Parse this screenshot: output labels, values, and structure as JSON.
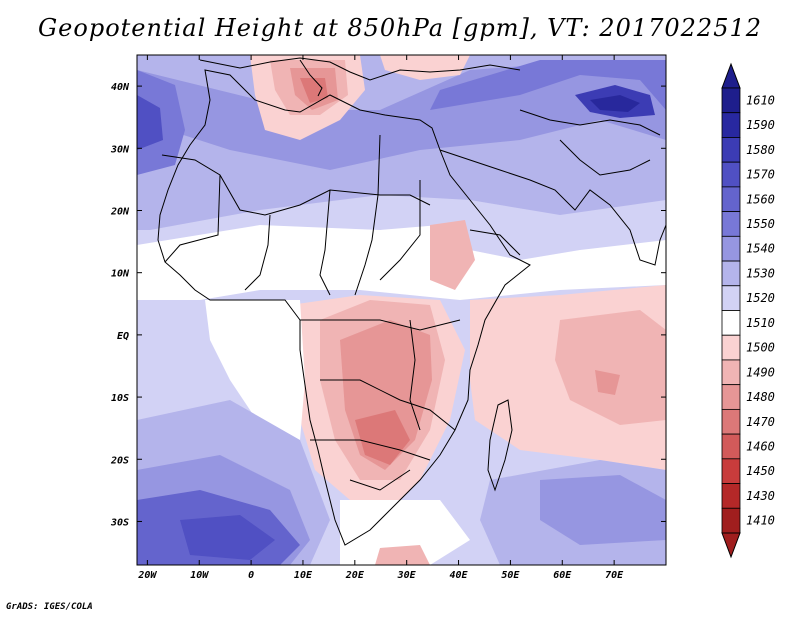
{
  "title": "Geopotential Height at 850hPa [gpm], VT: 2017022512",
  "credit": "GrADS: IGES/COLA",
  "axes": {
    "lon_labels": [
      "20W",
      "10W",
      "0",
      "10E",
      "20E",
      "30E",
      "40E",
      "50E",
      "60E",
      "70E"
    ],
    "lat_labels": [
      "40N",
      "30N",
      "20N",
      "10N",
      "EQ",
      "10S",
      "20S",
      "30S"
    ]
  },
  "colorbar": {
    "levels": [
      "1610",
      "1590",
      "1580",
      "1570",
      "1560",
      "1550",
      "1540",
      "1530",
      "1520",
      "1510",
      "1500",
      "1490",
      "1480",
      "1470",
      "1460",
      "1450",
      "1430",
      "1410"
    ],
    "colors": [
      "#1e1e8c",
      "#2828a0",
      "#3c3cb4",
      "#5050c3",
      "#6464cd",
      "#7878d7",
      "#9696e1",
      "#b4b4eb",
      "#d2d2f5",
      "#ffffff",
      "#fad2d2",
      "#f0b4b4",
      "#e69696",
      "#dc7878",
      "#d25a5a",
      "#c83c3c",
      "#b42828",
      "#a01e1e"
    ]
  },
  "chart_data": {
    "type": "heatmap",
    "title": "Geopotential Height at 850hPa [gpm], VT: 2017022512",
    "variable": "Geopotential Height at 850hPa",
    "units": "gpm",
    "valid_time": "2017022512",
    "lon_range": [
      -22,
      80
    ],
    "lat_range": [
      -37,
      45
    ],
    "levels": [
      1410,
      1430,
      1450,
      1460,
      1470,
      1480,
      1490,
      1500,
      1510,
      1520,
      1530,
      1540,
      1550,
      1560,
      1570,
      1580,
      1590,
      1610
    ]
  }
}
